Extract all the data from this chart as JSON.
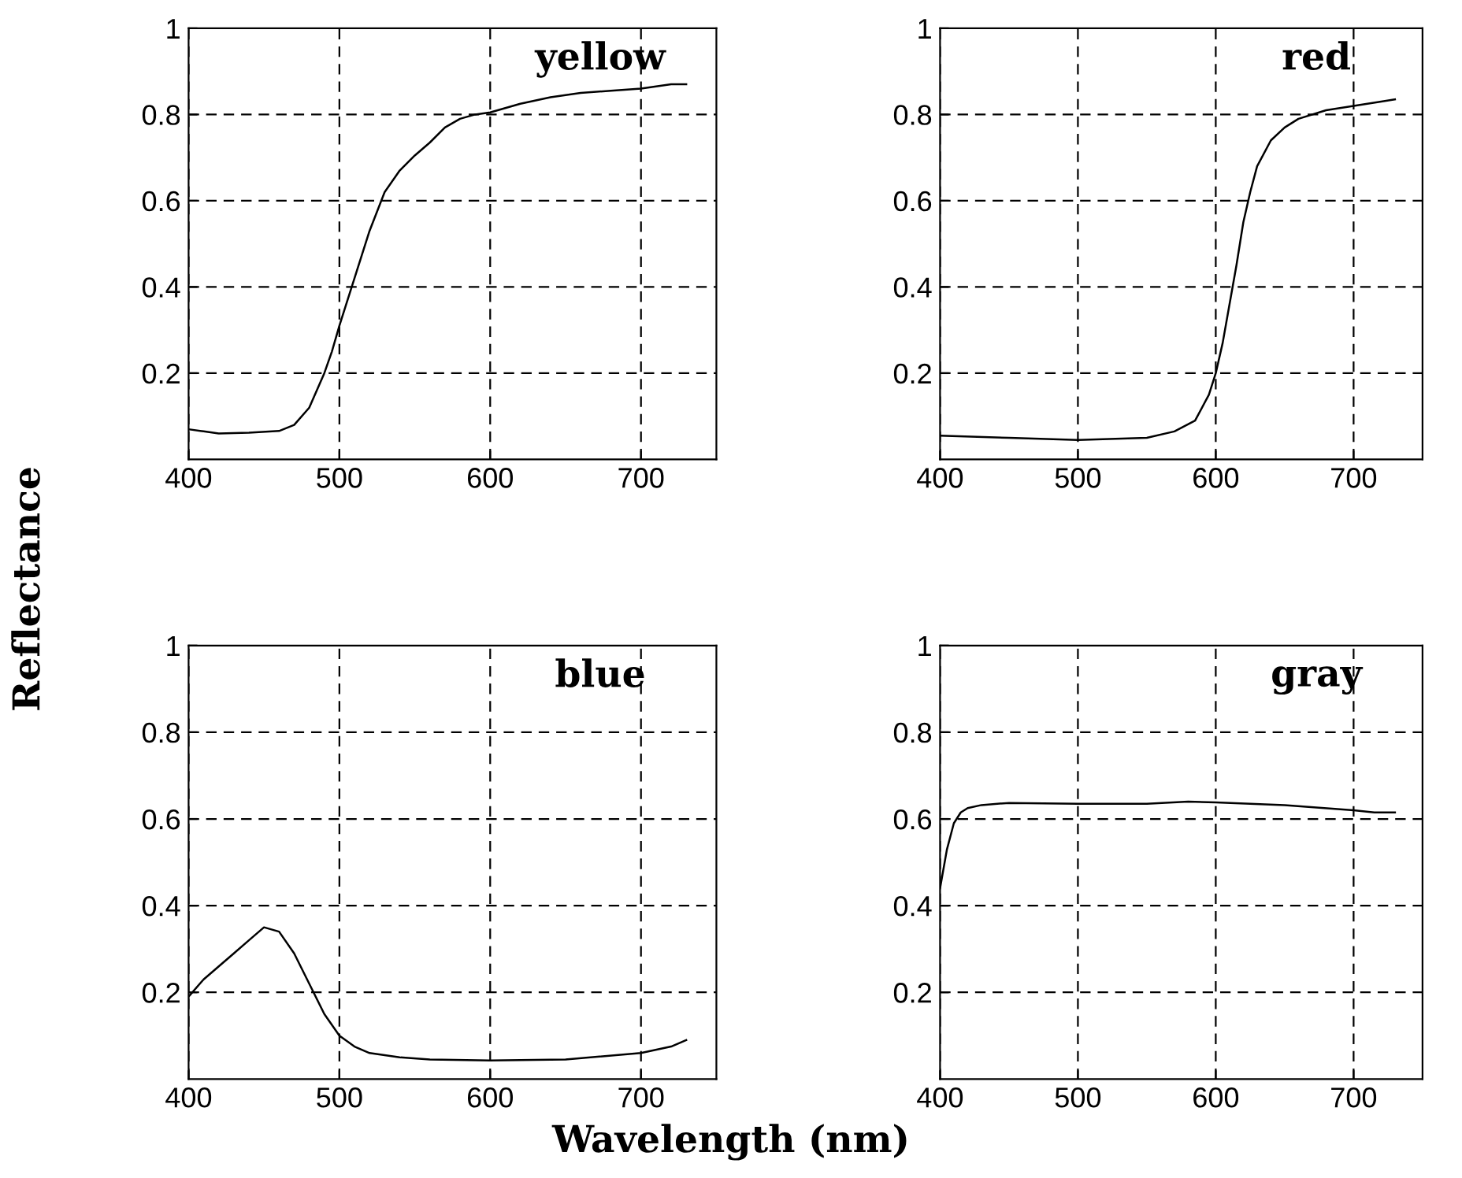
{
  "chart_data": [
    {
      "type": "line",
      "title": "yellow",
      "ylabel": "Reflectance",
      "xlim": [
        400,
        750
      ],
      "ylim": [
        0,
        1
      ],
      "xticks": [
        400,
        500,
        600,
        700
      ],
      "yticks": [
        0.2,
        0.4,
        0.6,
        0.8,
        1
      ],
      "grid": true,
      "series": [
        {
          "color": "#000000",
          "x": [
            400,
            410,
            420,
            440,
            460,
            470,
            480,
            490,
            495,
            500,
            510,
            520,
            530,
            540,
            550,
            560,
            570,
            580,
            590,
            600,
            620,
            640,
            660,
            680,
            700,
            720,
            730
          ],
          "values": [
            0.07,
            0.065,
            0.06,
            0.062,
            0.066,
            0.08,
            0.12,
            0.2,
            0.25,
            0.31,
            0.42,
            0.53,
            0.62,
            0.67,
            0.705,
            0.735,
            0.77,
            0.79,
            0.8,
            0.805,
            0.825,
            0.84,
            0.85,
            0.855,
            0.86,
            0.87,
            0.87
          ]
        }
      ]
    },
    {
      "type": "line",
      "title": "red",
      "xlim": [
        400,
        750
      ],
      "ylim": [
        0,
        1
      ],
      "xticks": [
        400,
        500,
        600,
        700
      ],
      "yticks": [
        0.2,
        0.4,
        0.6,
        0.8,
        1
      ],
      "grid": true,
      "series": [
        {
          "color": "#000000",
          "x": [
            400,
            450,
            500,
            550,
            570,
            585,
            595,
            600,
            605,
            610,
            615,
            620,
            625,
            630,
            640,
            650,
            660,
            680,
            700,
            720,
            730
          ],
          "values": [
            0.055,
            0.05,
            0.045,
            0.05,
            0.065,
            0.09,
            0.15,
            0.2,
            0.27,
            0.36,
            0.45,
            0.55,
            0.62,
            0.68,
            0.74,
            0.77,
            0.79,
            0.81,
            0.82,
            0.83,
            0.835
          ]
        }
      ]
    },
    {
      "type": "line",
      "title": "blue",
      "xlabel": "Wavelength (nm)",
      "xlim": [
        400,
        750
      ],
      "ylim": [
        0,
        1
      ],
      "xticks": [
        400,
        500,
        600,
        700
      ],
      "yticks": [
        0.2,
        0.4,
        0.6,
        0.8,
        1
      ],
      "grid": true,
      "series": [
        {
          "color": "#000000",
          "x": [
            400,
            410,
            420,
            430,
            440,
            450,
            460,
            470,
            480,
            490,
            500,
            510,
            520,
            540,
            560,
            600,
            650,
            700,
            720,
            730
          ],
          "values": [
            0.19,
            0.23,
            0.26,
            0.29,
            0.32,
            0.35,
            0.34,
            0.29,
            0.22,
            0.15,
            0.1,
            0.075,
            0.06,
            0.05,
            0.045,
            0.043,
            0.045,
            0.06,
            0.075,
            0.09
          ]
        }
      ]
    },
    {
      "type": "line",
      "title": "gray",
      "xlim": [
        400,
        750
      ],
      "ylim": [
        0,
        1
      ],
      "xticks": [
        400,
        500,
        600,
        700
      ],
      "yticks": [
        0.2,
        0.4,
        0.6,
        0.8,
        1
      ],
      "grid": true,
      "series": [
        {
          "color": "#000000",
          "x": [
            400,
            405,
            410,
            415,
            420,
            430,
            450,
            500,
            550,
            580,
            600,
            650,
            700,
            715,
            730
          ],
          "values": [
            0.44,
            0.53,
            0.59,
            0.615,
            0.625,
            0.632,
            0.637,
            0.635,
            0.635,
            0.64,
            0.638,
            0.632,
            0.62,
            0.615,
            0.615
          ]
        }
      ]
    }
  ]
}
